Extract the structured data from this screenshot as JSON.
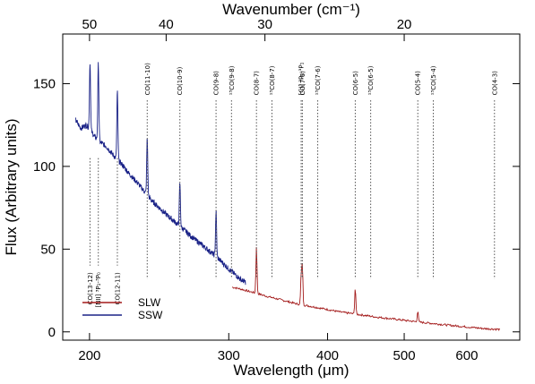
{
  "chart_data": {
    "type": "line",
    "title": "",
    "xlabel": "Wavelength (μm)",
    "ylabel": "Flux (Arbitrary units)",
    "x2label": "Wavenumber (cm⁻¹)",
    "x_scale": "log",
    "xlim": [
      185,
      700
    ],
    "ylim": [
      -5,
      180
    ],
    "x_ticks": [
      {
        "value": 200,
        "label": "200"
      },
      {
        "value": 300,
        "label": "300"
      },
      {
        "value": 400,
        "label": "400"
      },
      {
        "value": 500,
        "label": "500"
      },
      {
        "value": 600,
        "label": "600"
      }
    ],
    "x2_ticks": [
      {
        "value": 50,
        "label": "50"
      },
      {
        "value": 40,
        "label": "40"
      },
      {
        "value": 30,
        "label": "30"
      },
      {
        "value": 20,
        "label": "20"
      }
    ],
    "y_ticks": [
      {
        "value": 0,
        "label": "0"
      },
      {
        "value": 50,
        "label": "50"
      },
      {
        "value": 100,
        "label": "100"
      },
      {
        "value": 150,
        "label": "150"
      }
    ],
    "legend": {
      "placement": "bottom-left"
    },
    "series": [
      {
        "name": "SLW",
        "color": "#a31a1a",
        "x": [
          303,
          310,
          318,
          327,
          335,
          345,
          355,
          365,
          375,
          385,
          400,
          415,
          430,
          445,
          460,
          480,
          500,
          520,
          545,
          570,
          600,
          630,
          660
        ],
        "y": [
          27,
          26,
          24.5,
          23,
          21.5,
          20,
          18.5,
          17,
          16,
          15,
          13.5,
          12,
          11,
          10,
          9,
          8,
          7,
          6,
          5,
          4,
          3,
          2,
          1.5
        ]
      },
      {
        "name": "SSW",
        "color": "#1a2287",
        "x": [
          192,
          195,
          198,
          200,
          203,
          206,
          210,
          215,
          220,
          225,
          230,
          240,
          250,
          260,
          270,
          280,
          290,
          300,
          310,
          315
        ],
        "y": [
          128,
          123,
          125,
          123,
          118,
          115,
          112,
          106,
          101,
          95,
          90,
          79,
          71,
          64,
          57,
          51,
          45,
          38,
          32,
          30
        ]
      }
    ],
    "emission_lines": [
      {
        "label": "CO(13-12)",
        "x": 200.3,
        "peak": 163,
        "series": "SSW"
      },
      {
        "label": "[NII] ³P₁-³P₀",
        "x": 205.2,
        "peak": 162,
        "series": "SSW"
      },
      {
        "label": "CO(12-11)",
        "x": 216.9,
        "peak": 145,
        "series": "SSW"
      },
      {
        "label": "CO(11-10)",
        "x": 236.6,
        "peak": 117,
        "series": "SSW"
      },
      {
        "label": "CO(10-9)",
        "x": 260.2,
        "peak": 90,
        "series": "SSW"
      },
      {
        "label": "CO(9-8)",
        "x": 289.1,
        "peak": 73,
        "series": "SSW"
      },
      {
        "label": "¹³CO(9-8)",
        "x": 302.4,
        "peak": 0,
        "series": "none"
      },
      {
        "label": "CO(8-7)",
        "x": 325.2,
        "peak": 52,
        "series": "SLW"
      },
      {
        "label": "¹³CO(8-7)",
        "x": 340.2,
        "peak": 0,
        "series": "none"
      },
      {
        "label": "[CI] ³P₂-³P₁",
        "x": 370.4,
        "peak": 34,
        "series": "SLW"
      },
      {
        "label": "CO(7-6)",
        "x": 371.7,
        "peak": 40,
        "series": "SLW"
      },
      {
        "label": "¹³CO(7-6)",
        "x": 388.7,
        "peak": 0,
        "series": "none"
      },
      {
        "label": "CO(6-5)",
        "x": 433.6,
        "peak": 27,
        "series": "SLW"
      },
      {
        "label": "¹³CO(6-5)",
        "x": 453.5,
        "peak": 0,
        "series": "none"
      },
      {
        "label": "CO(5-4)",
        "x": 520.2,
        "peak": 13,
        "series": "SLW"
      },
      {
        "label": "¹³CO(5-4)",
        "x": 544.2,
        "peak": 0,
        "series": "none"
      },
      {
        "label": "CO(4-3)",
        "x": 650.3,
        "peak": 0,
        "series": "none"
      }
    ]
  }
}
